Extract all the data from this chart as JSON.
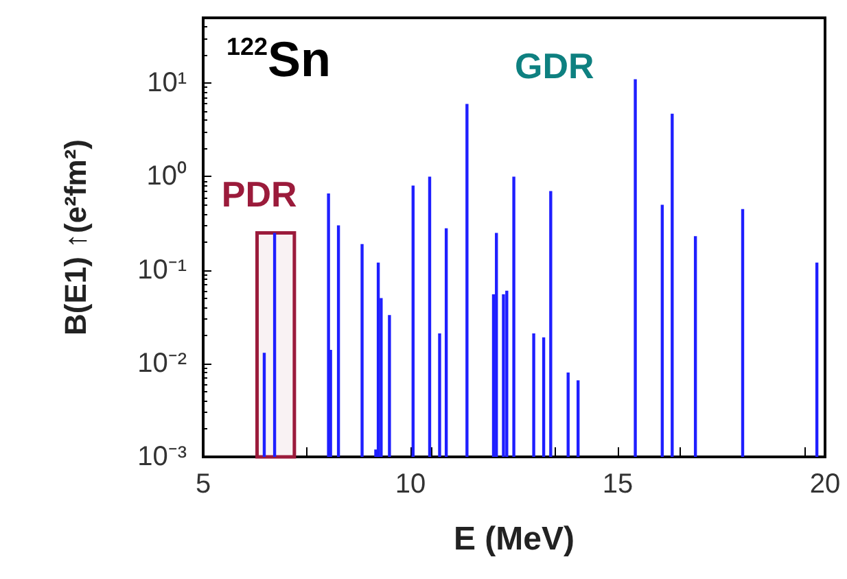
{
  "chart_data": {
    "type": "bar",
    "xlabel": "E (MeV)",
    "ylabel": "B(E1) ↑(e²fm²)",
    "annotations": [
      "$^{122}$Sn",
      "GDR"
    ],
    "x": [
      6.47,
      6.72,
      8.02,
      8.07,
      8.26,
      8.83,
      9.16,
      9.22,
      9.29,
      9.49,
      10.06,
      10.46,
      10.7,
      10.86,
      11.36,
      12.0,
      12.07,
      12.24,
      12.32,
      12.49,
      12.97,
      13.21,
      13.38,
      13.8,
      14.04,
      15.42,
      16.07,
      16.31,
      16.87,
      18.01,
      19.8
    ],
    "values": [
      0.013,
      0.25,
      0.66,
      0.014,
      0.3,
      0.19,
      0.0012,
      0.12,
      0.05,
      0.033,
      0.8,
      1.0,
      0.021,
      0.28,
      6,
      0.055,
      0.25,
      0.055,
      0.06,
      1.0,
      0.021,
      0.019,
      0.7,
      0.008,
      0.0066,
      11,
      0.5,
      4.7,
      0.23,
      0.45,
      0.12
    ],
    "color": "#1f1fff",
    "bands": [
      {
        "axis": "x",
        "from": 6.3,
        "to": 7.2,
        "label": "PDR",
        "color": "#9b1b3b"
      }
    ],
    "xlim": [
      5,
      20
    ],
    "xticks": [
      5,
      10,
      15,
      20
    ],
    "log": "y",
    "ylim": [
      0.001,
      50
    ],
    "yticks": [
      {
        "value": 0.001,
        "label": "10⁻³"
      },
      {
        "value": 0.01,
        "label": "10⁻²"
      },
      {
        "value": 0.1,
        "label": "10⁻¹"
      },
      {
        "value": 1,
        "label": "10⁰"
      },
      {
        "value": 10,
        "label": "10¹"
      }
    ],
    "grid": false
  }
}
